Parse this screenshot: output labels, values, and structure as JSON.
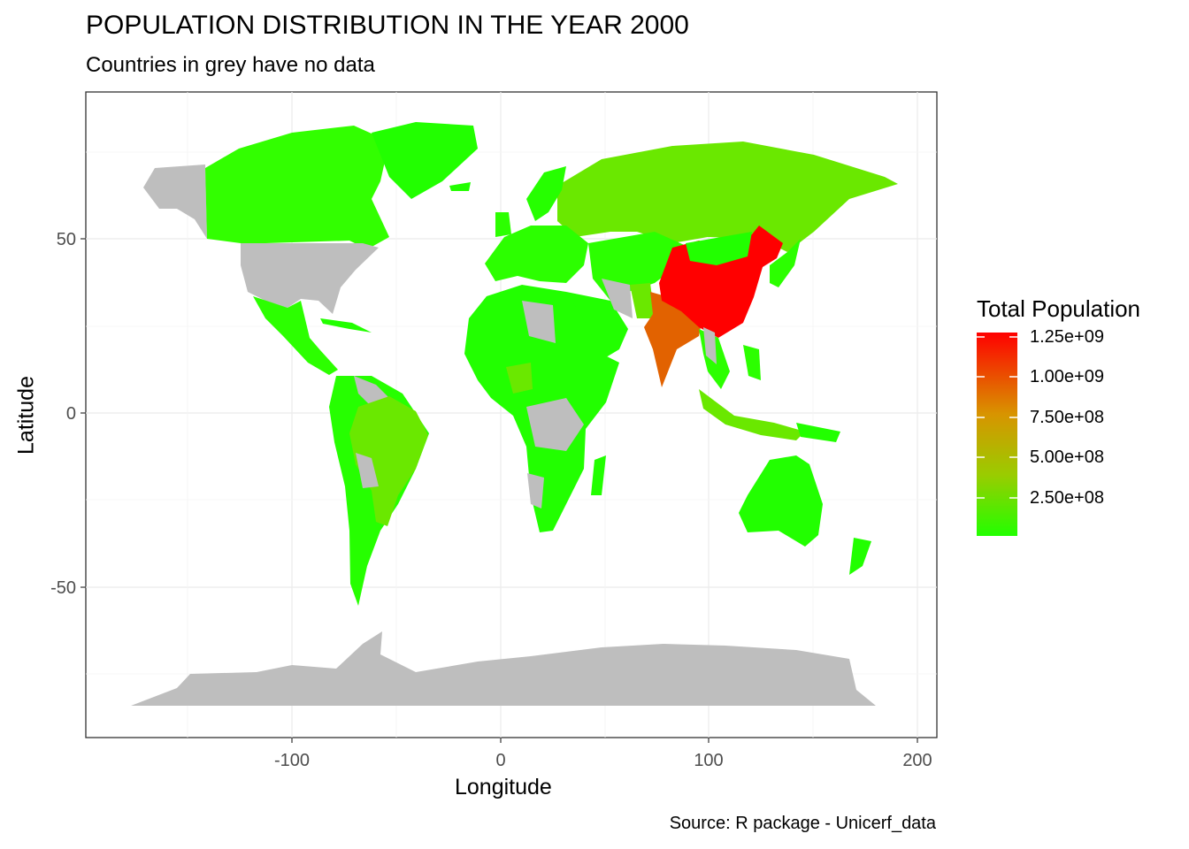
{
  "title": "POPULATION DISTRIBUTION IN THE YEAR 2000",
  "subtitle": "Countries in grey have no data",
  "caption": "Source: R package - Unicerf_data",
  "axes": {
    "xlabel": "Longitude",
    "ylabel": "Latitude",
    "xticks": [
      "-100",
      "0",
      "100",
      "200"
    ],
    "yticks": [
      "50",
      "0",
      "-50"
    ]
  },
  "legend": {
    "title": "Total Population",
    "labels": [
      "1.25e+09",
      "1.00e+09",
      "7.50e+08",
      "5.00e+08",
      "2.50e+08"
    ],
    "color_low": "#22ff00",
    "color_high": "#ff0000",
    "no_data_color": "#bebebe"
  }
}
